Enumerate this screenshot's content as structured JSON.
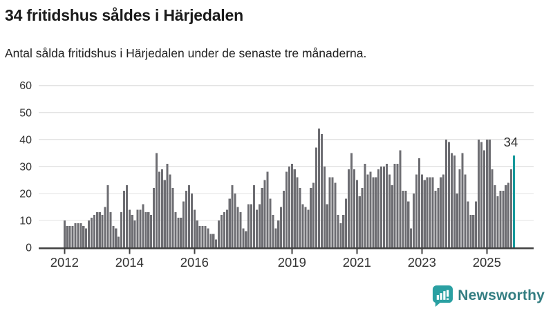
{
  "header": {
    "title": "34 fritidshus såldes i Härjedalen",
    "subtitle": "Antal sålda fritidshus i Härjedalen under de senaste tre månaderna."
  },
  "chart_data": {
    "type": "bar",
    "title": "34 fritidshus såldes i Härjedalen",
    "x_start": "2012-01",
    "frequency": "monthly",
    "ylim": [
      0,
      60
    ],
    "y_ticks": [
      0,
      10,
      20,
      30,
      40,
      50,
      60
    ],
    "x_tick_labels": [
      "2012",
      "2014",
      "2016",
      "2019",
      "2021",
      "2023",
      "2025"
    ],
    "x_tick_month_index": [
      0,
      24,
      48,
      84,
      108,
      132,
      156
    ],
    "grid": true,
    "legend": false,
    "annotation": {
      "label": "34",
      "target": "last-bar"
    },
    "colors": {
      "bar": "#6d6d72",
      "highlight": "#17999b",
      "grid": "#e3e3e3",
      "axis": "#404040",
      "tick_text": "#333333"
    },
    "highlight_last": true,
    "values": [
      10,
      8,
      8,
      8,
      9,
      9,
      9,
      8,
      7,
      10,
      11,
      12,
      13,
      13,
      12,
      15,
      23,
      13,
      8,
      7,
      4,
      13,
      21,
      23,
      14,
      12,
      10,
      14,
      14,
      16,
      13,
      13,
      12,
      22,
      35,
      28,
      29,
      25,
      31,
      27,
      22,
      13,
      11,
      11,
      17,
      21,
      23,
      20,
      14,
      10,
      8,
      8,
      8,
      7,
      5,
      5,
      3,
      10,
      12,
      13,
      14,
      18,
      23,
      20,
      15,
      13,
      7,
      6,
      16,
      16,
      23,
      14,
      16,
      22,
      25,
      28,
      18,
      12,
      7,
      10,
      15,
      21,
      28,
      30,
      31,
      29,
      26,
      22,
      16,
      15,
      14,
      22,
      24,
      37,
      44,
      42,
      30,
      16,
      26,
      26,
      24,
      12,
      9,
      12,
      18,
      29,
      35,
      29,
      25,
      19,
      22,
      31,
      27,
      28,
      26,
      26,
      29,
      30,
      30,
      31,
      27,
      23,
      31,
      31,
      36,
      21,
      21,
      17,
      7,
      20,
      27,
      33,
      27,
      25,
      26,
      26,
      26,
      21,
      22,
      26,
      27,
      40,
      39,
      35,
      34,
      20,
      29,
      35,
      27,
      17,
      12,
      12,
      17,
      40,
      39,
      36,
      40,
      40,
      29,
      23,
      19,
      21,
      21,
      23,
      24,
      29,
      34
    ]
  },
  "footer": {
    "brand": "Newsworthy",
    "logo_icon": "bar-chart-speech-bubble",
    "logo_color": "#2aa0a2"
  }
}
